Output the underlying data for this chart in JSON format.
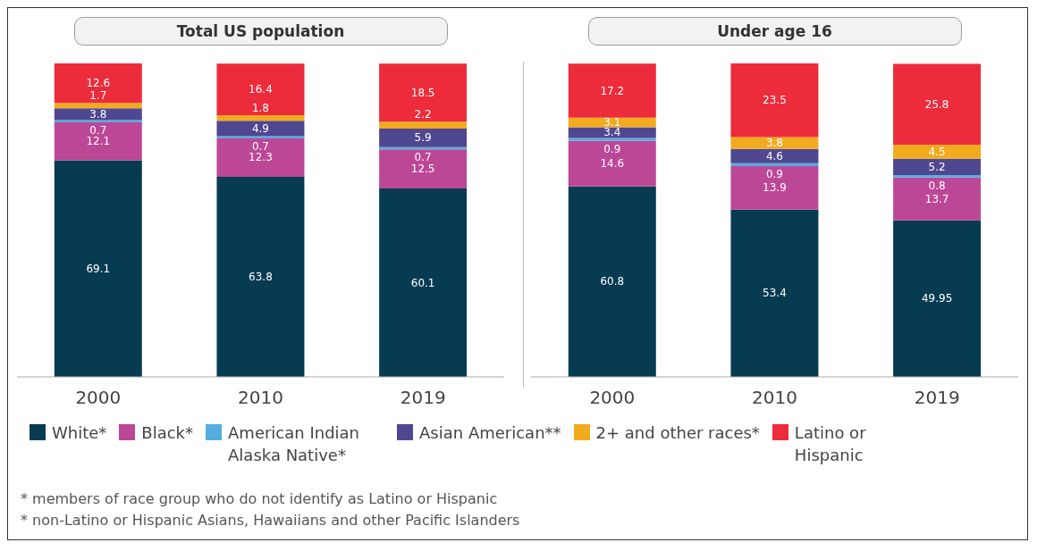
{
  "chart_data": [
    {
      "type": "bar",
      "title": "Total US population",
      "categories": [
        "2000",
        "2010",
        "2019"
      ],
      "stacked": true,
      "data_labels": true,
      "legend": "bottom",
      "series": [
        {
          "name": "White*",
          "color": "#073b52",
          "values": [
            69.1,
            63.8,
            60.1
          ]
        },
        {
          "name": "Black*",
          "color": "#bd4797",
          "values": [
            12.1,
            12.3,
            12.5
          ]
        },
        {
          "name": "American Indian Alaska Native*",
          "color": "#55ade0",
          "values": [
            0.7,
            0.7,
            0.7
          ]
        },
        {
          "name": "Asian American**",
          "color": "#4f4790",
          "values": [
            3.8,
            4.9,
            5.9
          ]
        },
        {
          "name": "2+ and other races*",
          "color": "#f2aa1f",
          "values": [
            1.7,
            1.8,
            2.2
          ]
        },
        {
          "name": "Latino or Hispanic",
          "color": "#ec2b3b",
          "values": [
            12.6,
            16.4,
            18.5
          ]
        }
      ],
      "annotations": [
        "* members of race group who do not identify as Latino or Hispanic",
        "* non-Latino or Hispanic Asians, Hawaiians and other Pacific Islanders"
      ]
    },
    {
      "type": "bar",
      "title": "Under age 16",
      "categories": [
        "2000",
        "2010",
        "2019"
      ],
      "stacked": true,
      "data_labels": true,
      "series": [
        {
          "color": "#073b52",
          "values": [
            60.8,
            53.4,
            49.95
          ]
        },
        {
          "color": "#bd4797",
          "values": [
            14.6,
            13.9,
            13.7
          ]
        },
        {
          "color": "#55ade0",
          "values": [
            0.9,
            0.9,
            0.8
          ]
        },
        {
          "color": "#4f4790",
          "values": [
            3.4,
            4.6,
            5.2
          ]
        },
        {
          "color": "#f2aa1f",
          "values": [
            3.1,
            3.8,
            4.5
          ]
        },
        {
          "color": "#ec2b3b",
          "values": [
            17.2,
            23.5,
            25.8
          ]
        }
      ]
    }
  ]
}
